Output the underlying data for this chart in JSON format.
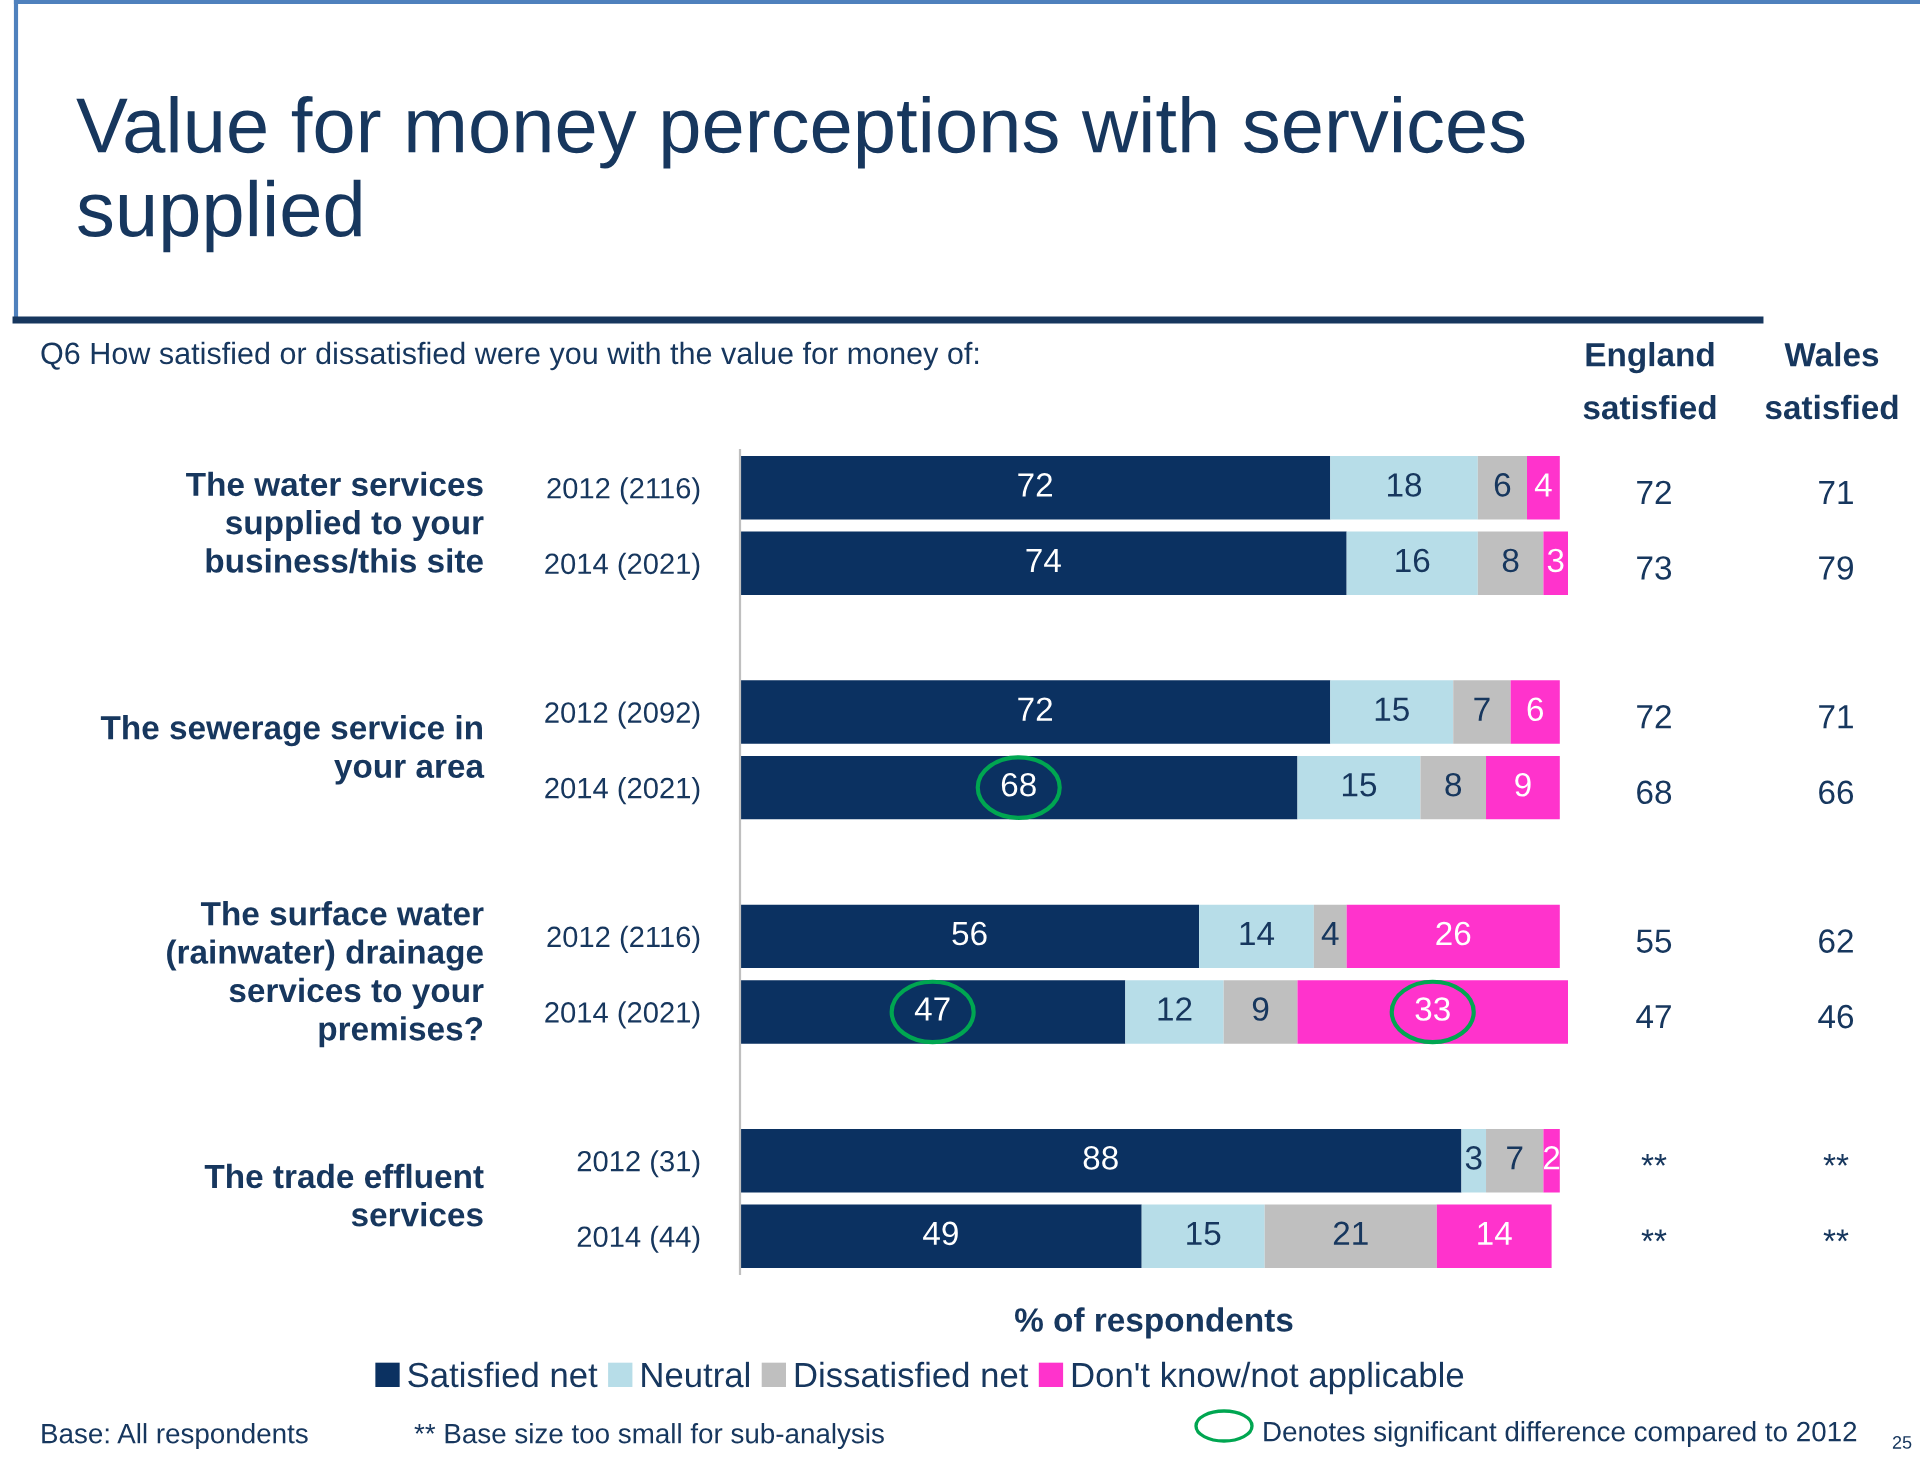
{
  "chart_data": {
    "type": "bar",
    "orientation": "horizontal",
    "stacked": true,
    "tick_labels": "y",
    "data_labels": true,
    "legend": "bottom",
    "grid": false,
    "title": "Value for money perceptions with services\nsupplied",
    "subtitle": "Q6 How satisfied or dissatisfied were you with the value for money of:",
    "xlabel": "% of respondents",
    "categories": [
      "2012 (2116)",
      "2014 (2021)",
      "2012 (2092)",
      "2014 (2021)",
      "2012 (2116)",
      "2014 (2021)",
      "2012 (31)",
      "2014 (44)"
    ],
    "series": [
      {
        "name": "Satisfied net",
        "color": "#0b3161",
        "values": [
          72,
          74,
          72,
          68,
          56,
          47,
          88,
          49
        ]
      },
      {
        "name": "Neutral",
        "color": "#b7dde8",
        "values": [
          18,
          16,
          15,
          15,
          14,
          12,
          3,
          15
        ]
      },
      {
        "name": "Dissatisfied net",
        "color": "#bfbfbf",
        "values": [
          6,
          8,
          7,
          8,
          4,
          9,
          7,
          21
        ]
      },
      {
        "name": "Don't know/not applicable",
        "color": "#ff33cc",
        "values": [
          4,
          3,
          6,
          9,
          26,
          33,
          2,
          14
        ]
      }
    ],
    "annotations": [
      "The water services\nsupplied to your\nbusiness/this site",
      "The sewerage service in\nyour area",
      "The surface water\n(rainwater) drainage\nservices to your\npremises?",
      "The trade effluent\nservices",
      "England\nsatisfied",
      "Wales\nsatisfied",
      "72",
      "71",
      "73",
      "79",
      "72",
      "71",
      "68",
      "66",
      "55",
      "62",
      "47",
      "46",
      "**",
      "**",
      "**",
      "**",
      "Base: All respondents",
      "** Base size too small for sub-analysis",
      "Denotes significant difference compared to 2012",
      "25",
      "68",
      "47",
      "33"
    ]
  }
}
